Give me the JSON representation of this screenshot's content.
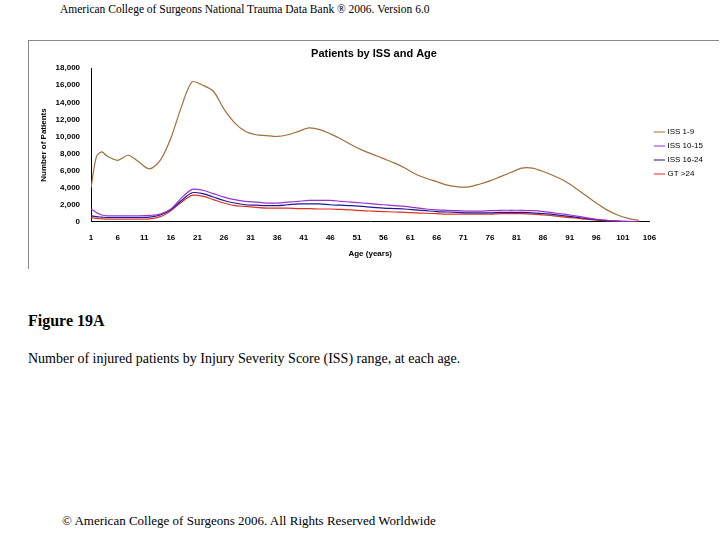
{
  "header": "American College of Surgeons National Trauma Data Bank ® 2006. Version 6.0",
  "figure_label": "Figure 19A",
  "caption": "Number of injured patients by Injury Severity Score (ISS) range, at each age.",
  "footer": "© American College of Surgeons 2006. All Rights Reserved Worldwide",
  "chart_data": {
    "type": "line",
    "title": "Patients by ISS and Age",
    "x_label": "Age (years)",
    "y_label": "Number of Patients",
    "x": [
      1,
      2,
      3,
      4,
      6,
      8,
      10,
      12,
      14,
      16,
      18,
      20,
      22,
      24,
      26,
      28,
      30,
      32,
      34,
      36,
      38,
      40,
      42,
      44,
      46,
      48,
      50,
      52,
      54,
      56,
      58,
      60,
      62,
      64,
      66,
      68,
      70,
      72,
      74,
      76,
      78,
      80,
      82,
      84,
      86,
      88,
      90,
      92,
      94,
      96,
      98,
      100,
      102,
      104
    ],
    "series": [
      {
        "name": "ISS 1-9",
        "color": "#a0703c",
        "values": [
          4000,
          7600,
          8200,
          7700,
          7200,
          7800,
          7000,
          6200,
          7200,
          9800,
          13500,
          16400,
          16000,
          15300,
          13200,
          11600,
          10600,
          10200,
          10100,
          10000,
          10200,
          10600,
          11000,
          10800,
          10300,
          9700,
          9000,
          8400,
          7900,
          7400,
          6900,
          6300,
          5600,
          5100,
          4700,
          4300,
          4100,
          4100,
          4400,
          4800,
          5300,
          5800,
          6300,
          6300,
          5900,
          5400,
          4800,
          4000,
          3100,
          2200,
          1400,
          800,
          400,
          150
        ]
      },
      {
        "name": "ISS 10-15",
        "color": "#9933cc",
        "values": [
          1500,
          1100,
          800,
          700,
          700,
          700,
          700,
          750,
          900,
          1500,
          2800,
          3800,
          3700,
          3300,
          2900,
          2600,
          2400,
          2300,
          2200,
          2200,
          2300,
          2400,
          2500,
          2500,
          2500,
          2400,
          2300,
          2200,
          2100,
          2000,
          1900,
          1800,
          1650,
          1500,
          1400,
          1350,
          1300,
          1250,
          1250,
          1300,
          1350,
          1350,
          1350,
          1300,
          1200,
          1050,
          900,
          700,
          500,
          300,
          180,
          90,
          40,
          10
        ]
      },
      {
        "name": "ISS 16-24",
        "color": "#1a1a99",
        "values": [
          700,
          600,
          550,
          500,
          500,
          500,
          500,
          550,
          800,
          1400,
          2500,
          3400,
          3300,
          2900,
          2500,
          2200,
          2000,
          1950,
          1900,
          1900,
          2000,
          2100,
          2100,
          2100,
          2000,
          1950,
          1900,
          1800,
          1700,
          1600,
          1550,
          1500,
          1400,
          1300,
          1200,
          1150,
          1100,
          1050,
          1050,
          1050,
          1100,
          1100,
          1100,
          1050,
          950,
          850,
          700,
          550,
          400,
          250,
          140,
          70,
          30,
          10
        ]
      },
      {
        "name": "GT >24",
        "color": "#e03020",
        "values": [
          500,
          400,
          350,
          300,
          300,
          300,
          300,
          350,
          600,
          1300,
          2300,
          3100,
          3000,
          2600,
          2200,
          1900,
          1800,
          1700,
          1600,
          1600,
          1600,
          1550,
          1550,
          1500,
          1500,
          1450,
          1400,
          1300,
          1250,
          1200,
          1150,
          1100,
          1050,
          1000,
          950,
          900,
          900,
          900,
          900,
          900,
          950,
          950,
          950,
          900,
          800,
          700,
          550,
          450,
          300,
          200,
          110,
          50,
          20,
          5
        ]
      }
    ],
    "xlim": [
      1,
      106
    ],
    "xticks": [
      1,
      6,
      11,
      16,
      21,
      26,
      31,
      36,
      41,
      46,
      51,
      56,
      61,
      66,
      71,
      76,
      81,
      86,
      91,
      96,
      101,
      106
    ],
    "ylim": [
      0,
      18000
    ],
    "yticks": [
      0,
      {
        "value": 2000,
        "label": "2,000"
      },
      {
        "value": 4000,
        "label": "4,000"
      },
      {
        "value": 6000,
        "label": "6,000"
      },
      {
        "value": 8000,
        "label": "8,000"
      },
      {
        "value": 10000,
        "label": "10,000"
      },
      {
        "value": 12000,
        "label": "12,000"
      },
      {
        "value": 14000,
        "label": "14,000"
      },
      {
        "value": 16000,
        "label": "16,000"
      },
      {
        "value": 18000,
        "label": "18,000"
      }
    ],
    "grid": false,
    "legend": "right"
  }
}
